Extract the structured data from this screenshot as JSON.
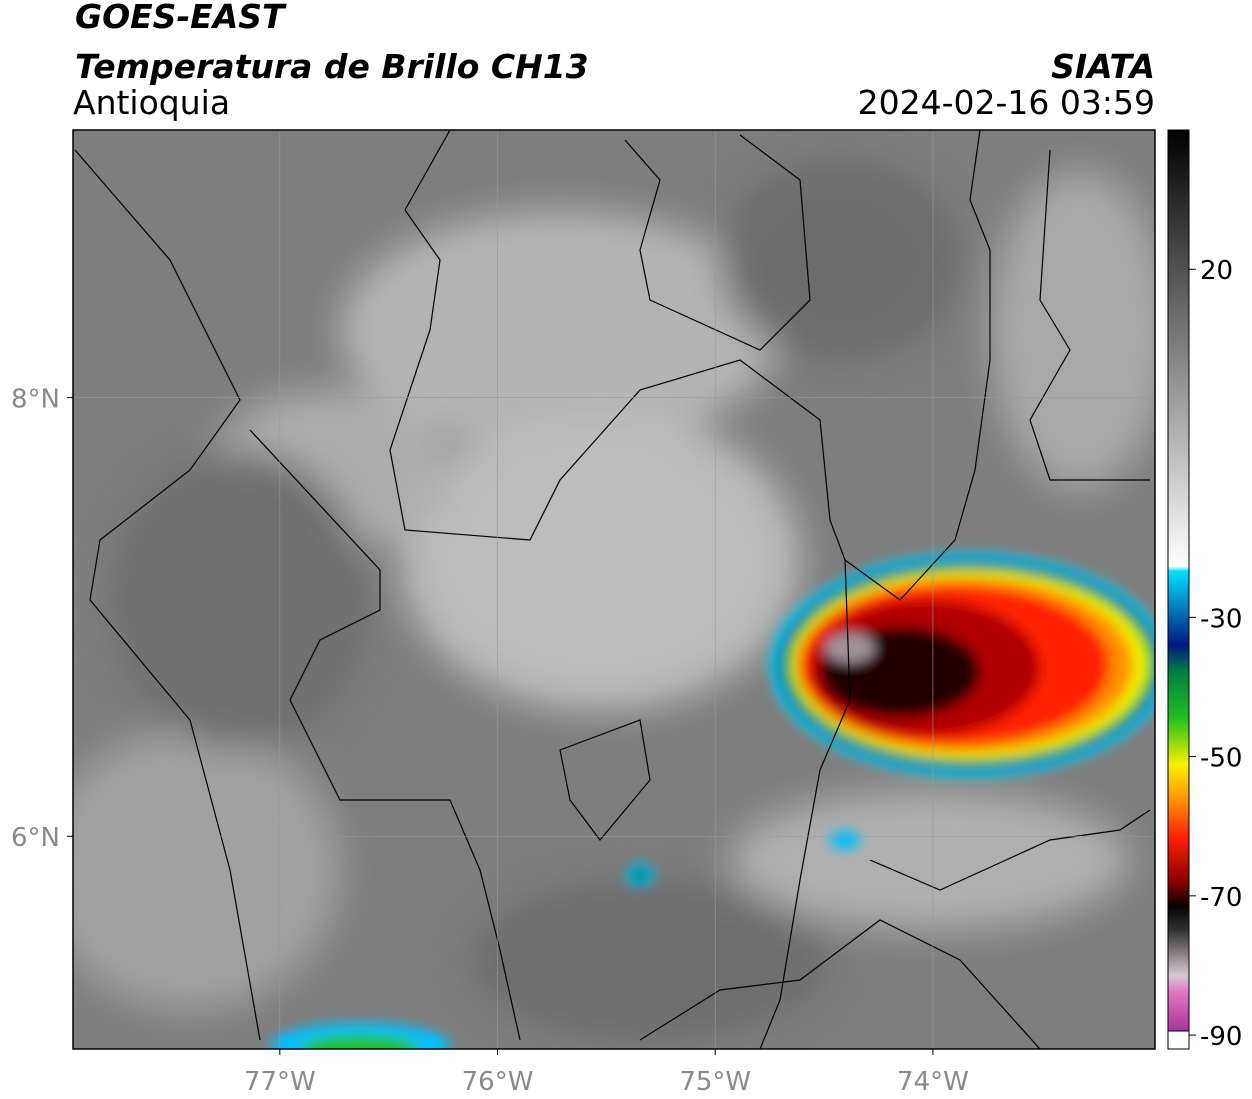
{
  "header": {
    "title": "GOES-EAST",
    "subtitle": "Temperatura de Brillo CH13",
    "region": "Antioquia",
    "source": "SIATA",
    "datetime": "2024-02-16 03:59"
  },
  "map": {
    "xlim": [
      -77.95,
      -72.98
    ],
    "ylim": [
      5.03,
      9.22
    ],
    "xticks": [
      {
        "value": -77,
        "label": "77°W"
      },
      {
        "value": -76,
        "label": "76°W"
      },
      {
        "value": -75,
        "label": "75°W"
      },
      {
        "value": -74,
        "label": "74°W"
      }
    ],
    "yticks": [
      {
        "value": 8,
        "label": "8°N"
      },
      {
        "value": 6,
        "label": "6°N"
      }
    ]
  },
  "colorbar": {
    "lim": [
      -92,
      40
    ],
    "ticks": [
      20,
      -30,
      -50,
      -70,
      -90
    ]
  }
}
